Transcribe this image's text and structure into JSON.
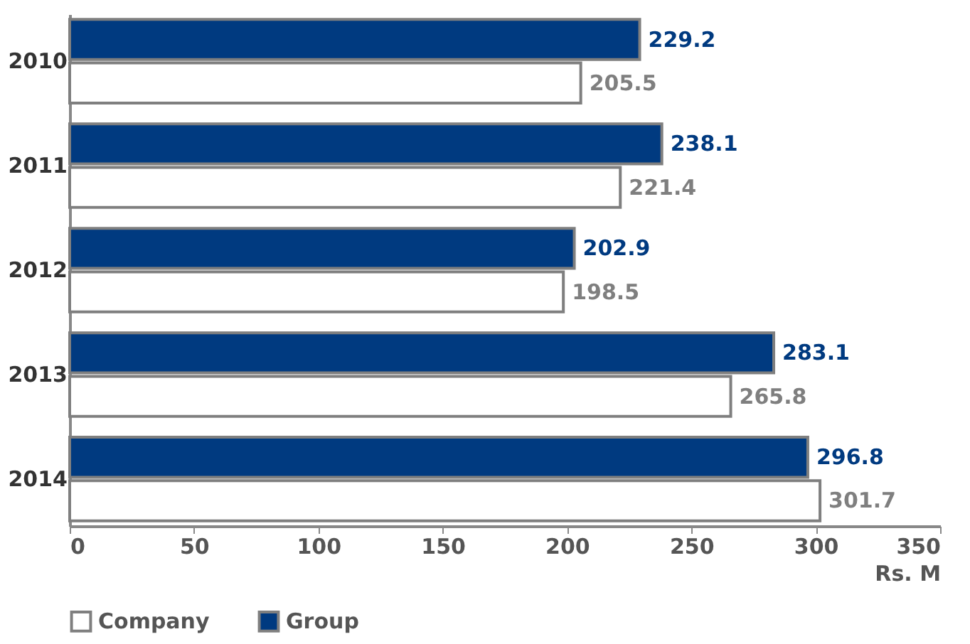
{
  "chart_data": {
    "type": "bar",
    "orientation": "horizontal",
    "xlabel": "Rs. M",
    "categories": [
      "2010",
      "2011",
      "2012",
      "2013",
      "2014"
    ],
    "series": [
      {
        "name": "Company",
        "color": "#ffffff",
        "values": [
          205.5,
          221.4,
          198.5,
          265.8,
          301.7
        ]
      },
      {
        "name": "Group",
        "color": "#003a80",
        "values": [
          229.2,
          238.1,
          202.9,
          283.1,
          296.8
        ]
      }
    ],
    "xlim": [
      0,
      350
    ],
    "xticks": [
      0,
      50,
      100,
      150,
      200,
      250,
      300,
      350
    ],
    "data_labels": true,
    "grid": false,
    "legend": "bottom"
  }
}
